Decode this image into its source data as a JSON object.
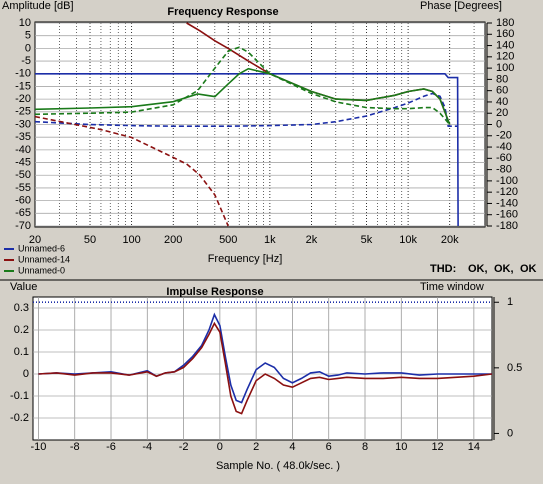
{
  "chart_data": [
    {
      "type": "line",
      "title": "Frequency Response",
      "ylabel": "Amplitude [dB]",
      "y2label": "Phase [Degrees]",
      "xlabel": "Frequency [Hz]",
      "xscale": "log",
      "xlim": [
        20,
        36000
      ],
      "ylim": [
        -70,
        10
      ],
      "y2lim": [
        -180,
        180
      ],
      "xticks": [
        20,
        50,
        100,
        200,
        500,
        {
          "value": 1000,
          "label": "1k"
        },
        {
          "value": 2000,
          "label": "2k"
        },
        {
          "value": 5000,
          "label": "5k"
        },
        {
          "value": 10000,
          "label": "10k"
        },
        {
          "value": 20000,
          "label": "20k"
        }
      ],
      "xminorticks": [
        30,
        40,
        60,
        70,
        80,
        90,
        300,
        400,
        600,
        700,
        800,
        900,
        3000,
        4000,
        6000,
        7000,
        8000,
        9000,
        30000
      ],
      "yticks": [
        10,
        5,
        0,
        -5,
        -10,
        -15,
        -20,
        -25,
        -30,
        -35,
        -40,
        -45,
        -50,
        -55,
        -60,
        -65,
        -70
      ],
      "y2ticks": [
        180,
        160,
        140,
        120,
        100,
        80,
        60,
        40,
        20,
        0,
        -20,
        -40,
        -60,
        -80,
        -100,
        -120,
        -140,
        -160,
        -180
      ],
      "grid": true,
      "legend": "lower left",
      "series": [
        {
          "name": "Unnamed-6",
          "color": "#1c2ea8",
          "x": [
            20,
            50,
            100,
            200,
            500,
            1000,
            2000,
            3000,
            5000,
            8000,
            10000,
            13000,
            15000,
            17000,
            18500,
            19500,
            22800,
            23000
          ],
          "values": [
            -10,
            -10,
            -10,
            -10,
            -10,
            -10,
            -10,
            -10,
            -10,
            -10,
            -10,
            -10,
            -10,
            -10,
            -10,
            -11.5,
            -11.5,
            -70
          ],
          "phase": [
            5,
            0,
            -2,
            -3,
            -3,
            -2,
            0,
            5,
            15,
            30,
            38,
            50,
            55,
            50,
            30,
            -3,
            -3,
            -3
          ]
        },
        {
          "name": "Unnamed-14",
          "color": "#8b1010",
          "x": [
            20,
            60,
            100,
            180,
            250,
            310,
            400,
            500,
            700,
            1000,
            2000,
            3000,
            5000,
            8000,
            10000,
            13000,
            15000,
            17000,
            20000
          ],
          "values": [
            null,
            null,
            null,
            null,
            10,
            7,
            3,
            0,
            -5,
            -10,
            -17,
            -20,
            -20.5,
            -18.5,
            -17,
            -16,
            -17,
            -20,
            -30
          ],
          "phase": [
            14,
            -9,
            -23,
            -53,
            -70,
            -89,
            -125,
            -180,
            null,
            null,
            null,
            null,
            null,
            null,
            null,
            null,
            null,
            null,
            null
          ]
        },
        {
          "name": "Unnamed-0",
          "color": "#1a7a1a",
          "x": [
            20,
            50,
            100,
            200,
            300,
            400,
            500,
            600,
            700,
            1000,
            2000,
            3000,
            5000,
            8000,
            10000,
            13000,
            15000,
            17000,
            20000
          ],
          "values": [
            -24,
            -23.5,
            -23,
            -21,
            -18,
            -19,
            -14,
            -10,
            -8,
            -10,
            -17,
            -20,
            -20.5,
            -18.5,
            -17,
            -16,
            -17,
            -20,
            -30
          ],
          "phase": [
            18,
            20,
            22,
            35,
            60,
            100,
            130,
            137,
            128,
            90,
            55,
            40,
            30,
            28,
            28,
            30,
            30,
            20,
            0
          ]
        }
      ],
      "thd": {
        "label": "THD:",
        "items": [
          {
            "text": "OK,",
            "color": "#1c2ea8"
          },
          {
            "text": "OK,",
            "color": "#b01010"
          },
          {
            "text": "OK",
            "color": "#1a7a1a"
          }
        ]
      }
    },
    {
      "type": "line",
      "title": "Impulse Response",
      "ylabel": "Value",
      "y2label": "Time window",
      "xlabel": "Sample No. ( 48.0k/sec. )",
      "xlim": [
        -10.3,
        15
      ],
      "ylim": [
        -0.3,
        0.35
      ],
      "y2lim": [
        -0.05,
        1.04
      ],
      "xticks": [
        -10,
        -8,
        -6,
        -4,
        -2,
        0,
        2,
        4,
        6,
        8,
        10,
        12,
        14
      ],
      "yticks": [
        0.3,
        0.2,
        0.1,
        0,
        -0.1,
        -0.2
      ],
      "y2ticks": [
        1,
        0.5,
        0
      ],
      "grid": true,
      "x": [
        -10,
        -9,
        -8,
        -7,
        -6,
        -5,
        -4,
        -3.5,
        -3,
        -2.5,
        -2,
        -1.5,
        -1,
        -0.6,
        -0.3,
        0,
        0.3,
        0.6,
        0.9,
        1.2,
        1.5,
        2,
        2.5,
        3,
        3.5,
        4,
        4.5,
        5,
        5.5,
        6,
        6.5,
        7,
        8,
        9,
        10,
        11,
        12,
        13,
        14,
        15
      ],
      "series": [
        {
          "color": "#1c2ea8",
          "values": [
            0,
            0.005,
            0,
            0.005,
            0.01,
            -0.005,
            0.015,
            -0.01,
            0.005,
            0.01,
            0.04,
            0.08,
            0.13,
            0.2,
            0.27,
            0.22,
            0.08,
            -0.05,
            -0.12,
            -0.13,
            -0.07,
            0.02,
            0.05,
            0.03,
            -0.02,
            -0.04,
            -0.02,
            0.005,
            0.01,
            -0.01,
            -0.005,
            0.005,
            0,
            0.005,
            0.005,
            -0.005,
            0,
            0,
            0,
            0
          ]
        },
        {
          "color": "#8b1010",
          "values": [
            0,
            0.005,
            -0.005,
            0.005,
            0.005,
            -0.005,
            0.01,
            -0.01,
            0.005,
            0.01,
            0.03,
            0.07,
            0.12,
            0.18,
            0.23,
            0.19,
            0.05,
            -0.1,
            -0.17,
            -0.18,
            -0.12,
            -0.03,
            0,
            -0.02,
            -0.05,
            -0.06,
            -0.04,
            -0.02,
            -0.015,
            -0.025,
            -0.02,
            -0.015,
            -0.02,
            -0.02,
            -0.015,
            -0.02,
            -0.02,
            -0.015,
            -0.01,
            0
          ]
        },
        {
          "color": "#1c2ea8",
          "axis": "y2",
          "style": "dotted",
          "x": [
            -10.3,
            15
          ],
          "values": [
            1,
            1
          ]
        }
      ]
    }
  ]
}
